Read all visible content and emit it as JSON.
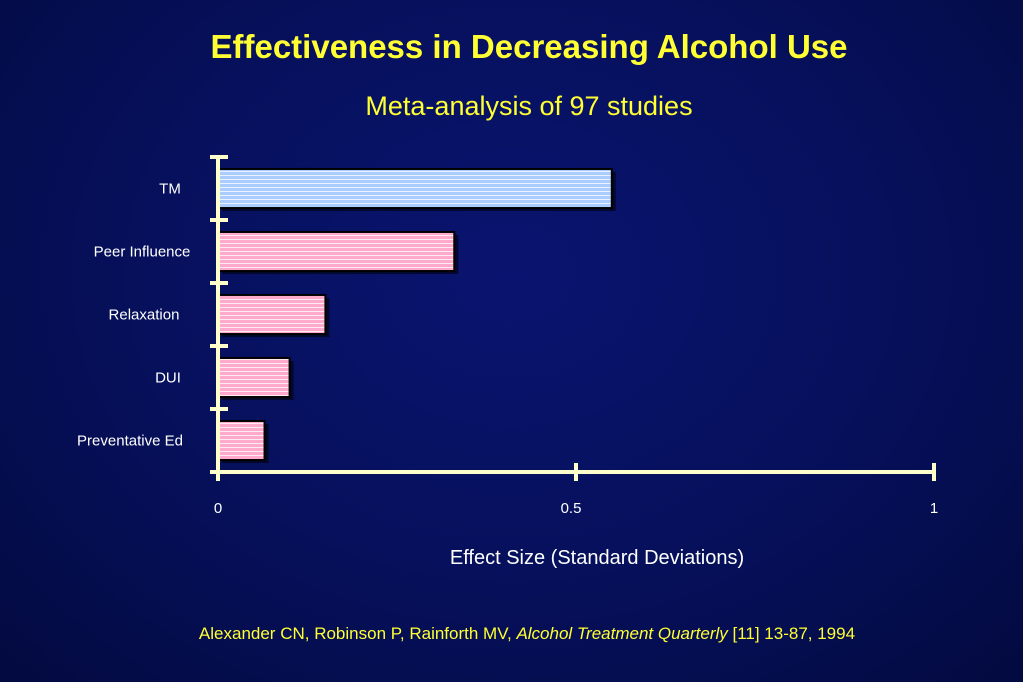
{
  "slide": {
    "colors": {
      "background": "#06105a",
      "text_accent": "#ffff33",
      "axis": "#ffffcc",
      "label_text": "#ffffff",
      "bar_tm": "#aaccff",
      "bar_other": "#ffaacc"
    },
    "citation": {
      "authors": "Alexander CN, Robinson P, Rainforth MV, ",
      "journal": "Alcohol Treatment Quarterly",
      "details": " [11] 13-87, 1994"
    }
  },
  "chart_data": {
    "type": "bar",
    "orientation": "horizontal",
    "title": "Effectiveness in Decreasing Alcohol Use",
    "subtitle": "Meta-analysis of 97 studies",
    "xlabel": "Effect Size (Standard Deviations)",
    "ylabel": "",
    "xlim": [
      0,
      1
    ],
    "xticks": [
      "0",
      "0.5",
      "1"
    ],
    "grid": false,
    "legend": "none",
    "categories": [
      "TM",
      "Peer Influence",
      "Relaxation",
      "DUI",
      "Preventative Ed"
    ],
    "values": [
      0.55,
      0.33,
      0.15,
      0.1,
      0.065
    ]
  }
}
